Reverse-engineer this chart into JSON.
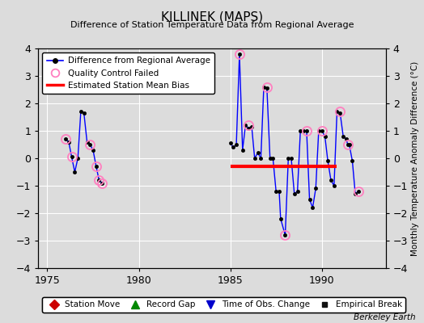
{
  "title": "KILLINEK (MAPS)",
  "subtitle": "Difference of Station Temperature Data from Regional Average",
  "ylabel_right": "Monthly Temperature Anomaly Difference (°C)",
  "credit": "Berkeley Earth",
  "xlim": [
    1974.5,
    1993.5
  ],
  "ylim": [
    -4,
    4
  ],
  "yticks": [
    -4,
    -3,
    -2,
    -1,
    0,
    1,
    2,
    3,
    4
  ],
  "xticks": [
    1975,
    1980,
    1985,
    1990
  ],
  "bg_color": "#dcdcdc",
  "grid_color": "#ffffff",
  "data_line_color": "#0000ff",
  "data_marker_color": "#000000",
  "qc_marker_color": "#ff80c0",
  "bias_line_color": "#ff0000",
  "bias_segment": [
    1985.0,
    1990.8,
    -0.3
  ],
  "segments": [
    {
      "x": [
        1976.0,
        1976.17,
        1976.33,
        1976.5,
        1976.67,
        1976.83,
        1977.0,
        1977.17,
        1977.33,
        1977.5,
        1977.67,
        1977.83,
        1978.0
      ],
      "y": [
        0.7,
        0.6,
        0.05,
        -0.5,
        0.0,
        1.7,
        1.65,
        0.6,
        0.5,
        0.3,
        -0.3,
        -0.8,
        -0.9
      ]
    },
    {
      "x": [
        1985.0,
        1985.17,
        1985.33,
        1985.5,
        1985.67,
        1985.83,
        1986.0,
        1986.17,
        1986.33,
        1986.5,
        1986.67,
        1986.83,
        1987.0,
        1987.17,
        1987.33,
        1987.5,
        1987.67,
        1987.75,
        1988.0,
        1988.17,
        1988.33,
        1988.5,
        1988.67,
        1988.83,
        1989.0,
        1989.17,
        1989.33,
        1989.5,
        1989.67,
        1989.83,
        1990.0,
        1990.17,
        1990.33,
        1990.5,
        1990.67,
        1990.83,
        1991.0,
        1991.17,
        1991.33,
        1991.42,
        1991.5,
        1991.67,
        1991.83,
        1992.0
      ],
      "y": [
        0.55,
        0.4,
        0.5,
        3.8,
        0.3,
        1.2,
        1.1,
        1.15,
        0.0,
        0.2,
        0.0,
        2.6,
        2.55,
        0.0,
        0.0,
        -1.2,
        -1.2,
        -2.2,
        -2.8,
        0.0,
        0.0,
        -1.3,
        -1.2,
        1.0,
        1.0,
        1.0,
        -1.5,
        -1.8,
        -1.1,
        1.0,
        1.0,
        0.8,
        -0.1,
        -0.8,
        -1.0,
        1.7,
        1.65,
        0.8,
        0.7,
        0.5,
        0.5,
        -0.1,
        -1.3,
        -1.2
      ]
    }
  ],
  "qc_failed": [
    [
      1976.0,
      0.7
    ],
    [
      1976.33,
      0.05
    ],
    [
      1977.33,
      0.5
    ],
    [
      1977.67,
      -0.3
    ],
    [
      1977.83,
      -0.8
    ],
    [
      1978.0,
      -0.9
    ],
    [
      1985.5,
      3.8
    ],
    [
      1986.0,
      1.2
    ],
    [
      1987.0,
      2.6
    ],
    [
      1988.0,
      -2.8
    ],
    [
      1989.17,
      1.0
    ],
    [
      1990.0,
      1.0
    ],
    [
      1991.0,
      1.7
    ],
    [
      1991.42,
      0.5
    ],
    [
      1992.0,
      -1.2
    ]
  ]
}
